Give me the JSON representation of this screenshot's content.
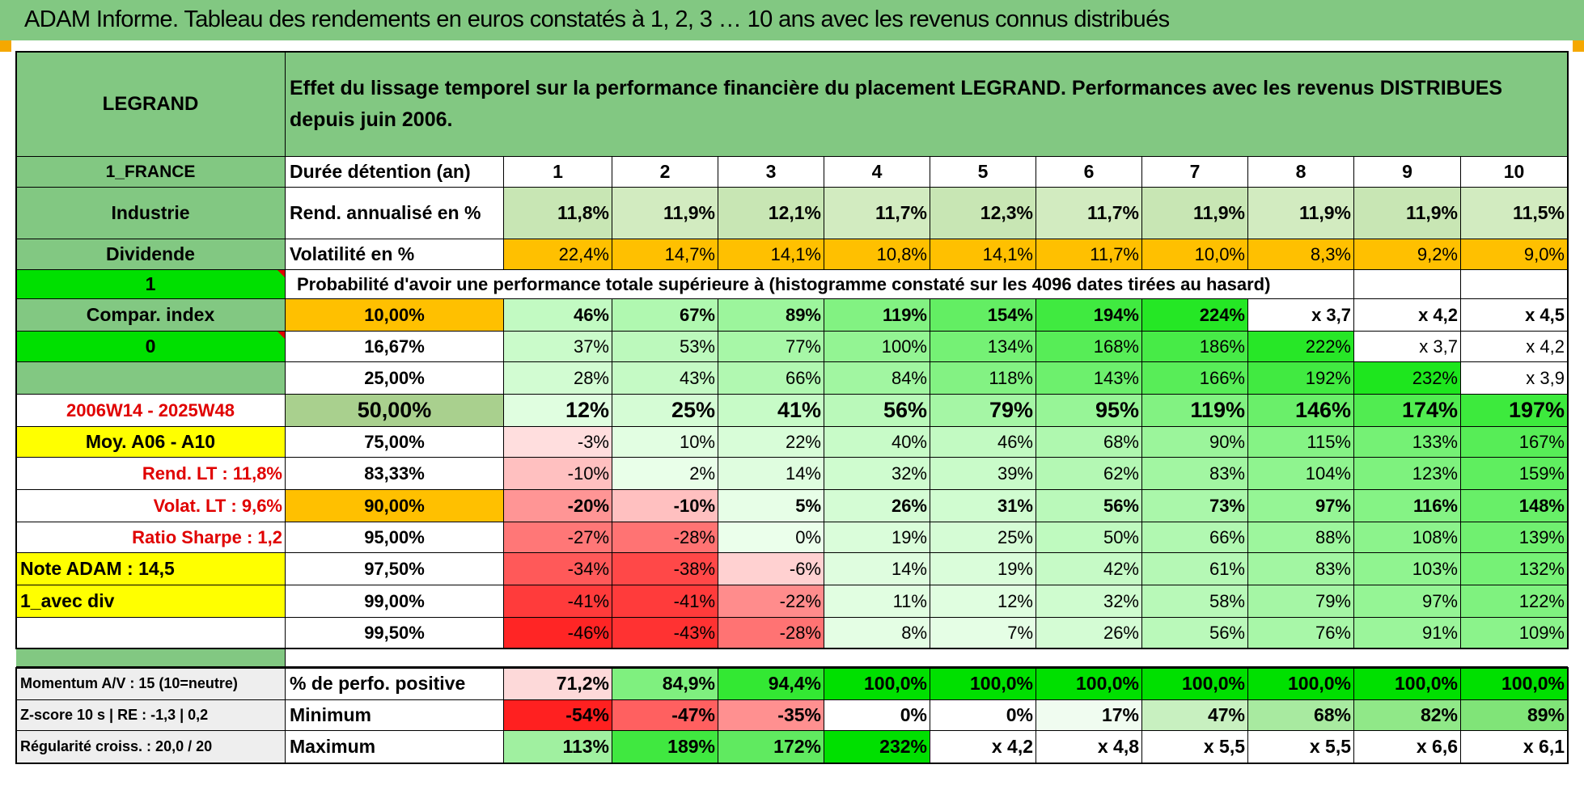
{
  "header": {
    "title": "ADAM Informe. Tableau des rendements en euros constatés à 1, 2, 3 … 10 ans avec les revenus connus distribués"
  },
  "left_panel": {
    "stock_name": "LEGRAND",
    "country": "1_FRANCE",
    "sector": "Industrie",
    "type": "Dividende",
    "flag_value_1": "1",
    "compar_index": "Compar. index",
    "flag_value_0": "0",
    "period": "2006W14 - 2025W48",
    "moy": "Moy. A06 - A10",
    "rend_lt": "Rend. LT :   11,8%",
    "volat_lt": "Volat. LT :   9,6%",
    "ratio_sharpe": "Ratio Sharpe :    1,2",
    "note_adam": "Note ADAM : 14,5",
    "avec_div": "1_avec div",
    "momentum": "Momentum A/V : 15 (10=neutre)",
    "zscore": "Z-score 10 s | RE : -1,3 | 0,2",
    "regularite": "Régularité croiss. : 20,0 / 20"
  },
  "main": {
    "description": "Effet du lissage temporel sur la performance financière du placement LEGRAND. Performances avec les revenus DISTRIBUES depuis juin 2006.",
    "row_labels": {
      "duree": "Durée détention (an)",
      "rend": "Rend. annualisé en %",
      "volat": "Volatilité en %",
      "prob": "Probabilité d'avoir une performance totale supérieure à (histogramme constaté sur les 4096 dates tirées au hasard)",
      "perfo_pos": "% de perfo. positive",
      "minimum": "Minimum",
      "maximum": "Maximum"
    },
    "years": [
      "1",
      "2",
      "3",
      "4",
      "5",
      "6",
      "7",
      "8",
      "9",
      "10"
    ],
    "rend": [
      "11,8%",
      "11,9%",
      "12,1%",
      "11,7%",
      "12,3%",
      "11,7%",
      "11,9%",
      "11,9%",
      "11,9%",
      "11,5%"
    ],
    "volat": [
      "22,4%",
      "14,7%",
      "14,1%",
      "10,8%",
      "14,1%",
      "11,7%",
      "10,0%",
      "8,3%",
      "9,2%",
      "9,0%"
    ],
    "prob_rows": [
      {
        "pct": "10,00%",
        "vals": [
          "46%",
          "67%",
          "89%",
          "119%",
          "154%",
          "194%",
          "224%",
          "x 3,7",
          "x 4,2",
          "x 4,5"
        ]
      },
      {
        "pct": "16,67%",
        "vals": [
          "37%",
          "53%",
          "77%",
          "100%",
          "134%",
          "168%",
          "186%",
          "222%",
          "x 3,7",
          "x 4,2"
        ]
      },
      {
        "pct": "25,00%",
        "vals": [
          "28%",
          "43%",
          "66%",
          "84%",
          "118%",
          "143%",
          "166%",
          "192%",
          "232%",
          "x 3,9"
        ]
      },
      {
        "pct": "50,00%",
        "vals": [
          "12%",
          "25%",
          "41%",
          "56%",
          "79%",
          "95%",
          "119%",
          "146%",
          "174%",
          "197%"
        ]
      },
      {
        "pct": "75,00%",
        "vals": [
          "-3%",
          "10%",
          "22%",
          "40%",
          "46%",
          "68%",
          "90%",
          "115%",
          "133%",
          "167%"
        ]
      },
      {
        "pct": "83,33%",
        "vals": [
          "-10%",
          "2%",
          "14%",
          "32%",
          "39%",
          "62%",
          "83%",
          "104%",
          "123%",
          "159%"
        ]
      },
      {
        "pct": "90,00%",
        "vals": [
          "-20%",
          "-10%",
          "5%",
          "26%",
          "31%",
          "56%",
          "73%",
          "97%",
          "116%",
          "148%"
        ]
      },
      {
        "pct": "95,00%",
        "vals": [
          "-27%",
          "-28%",
          "0%",
          "19%",
          "25%",
          "50%",
          "66%",
          "88%",
          "108%",
          "139%"
        ]
      },
      {
        "pct": "97,50%",
        "vals": [
          "-34%",
          "-38%",
          "-6%",
          "14%",
          "19%",
          "42%",
          "61%",
          "83%",
          "103%",
          "132%"
        ]
      },
      {
        "pct": "99,00%",
        "vals": [
          "-41%",
          "-41%",
          "-22%",
          "11%",
          "12%",
          "32%",
          "58%",
          "79%",
          "97%",
          "122%"
        ]
      },
      {
        "pct": "99,50%",
        "vals": [
          "-46%",
          "-43%",
          "-28%",
          "8%",
          "7%",
          "26%",
          "56%",
          "76%",
          "91%",
          "109%"
        ]
      }
    ],
    "perfo_pos": [
      "71,2%",
      "84,9%",
      "94,4%",
      "100,0%",
      "100,0%",
      "100,0%",
      "100,0%",
      "100,0%",
      "100,0%",
      "100,0%"
    ],
    "minimum": [
      "-54%",
      "-47%",
      "-35%",
      "0%",
      "0%",
      "17%",
      "47%",
      "68%",
      "82%",
      "89%"
    ],
    "maximum": [
      "113%",
      "189%",
      "172%",
      "232%",
      "x 4,2",
      "x 4,8",
      "x 5,5",
      "x 5,5",
      "x 6,6",
      "x 6,1"
    ]
  },
  "colors": {
    "header_green": "#82c882",
    "bright_green": "#00e000",
    "yellow": "#ffff00",
    "orange": "#ffc000",
    "red_text": "#e00000"
  }
}
